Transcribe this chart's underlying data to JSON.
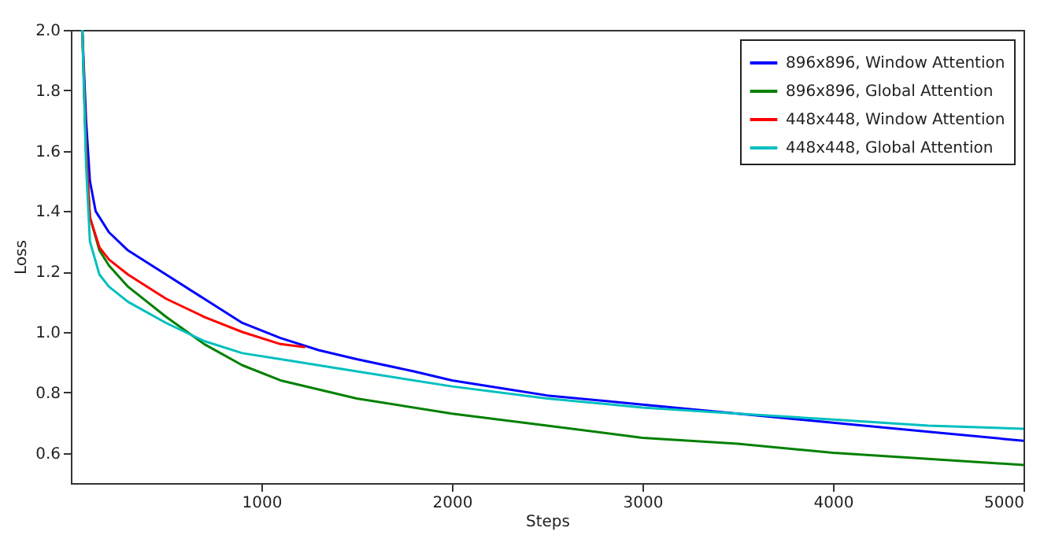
{
  "chart_data": {
    "type": "line",
    "xlabel": "Steps",
    "ylabel": "Loss",
    "xlim": [
      0,
      5000
    ],
    "xticks": [
      1000,
      2000,
      3000,
      4000,
      5000
    ],
    "ylim": [
      0.5,
      2.0
    ],
    "yticks": [
      0.6,
      0.8,
      {
        "value": 1,
        "label": "1.0"
      },
      1.2,
      1.4,
      1.6,
      1.8,
      {
        "value": 2,
        "label": "2.0"
      }
    ],
    "grid": false,
    "legend": "top right",
    "marker": "none",
    "line_style": "solid",
    "series": [
      {
        "name": "896x896, Window Attention",
        "color": "#0000ff",
        "x": [
          60,
          80,
          100,
          130,
          200,
          300,
          500,
          700,
          900,
          1100,
          1300,
          1500,
          1800,
          2000,
          2300,
          2500,
          3000,
          3500,
          4000,
          4500,
          5000
        ],
        "values": [
          2.0,
          1.7,
          1.5,
          1.4,
          1.33,
          1.27,
          1.19,
          1.11,
          1.03,
          0.98,
          0.94,
          0.91,
          0.87,
          0.84,
          0.81,
          0.79,
          0.76,
          0.73,
          0.7,
          0.67,
          0.64
        ]
      },
      {
        "name": "896x896, Global Attention",
        "color": "#008000",
        "x": [
          60,
          80,
          100,
          150,
          200,
          300,
          500,
          700,
          900,
          1100,
          1500,
          2000,
          2500,
          3000,
          3500,
          4000,
          4500,
          5000
        ],
        "values": [
          2.0,
          1.6,
          1.38,
          1.27,
          1.22,
          1.15,
          1.05,
          0.96,
          0.89,
          0.84,
          0.78,
          0.73,
          0.69,
          0.65,
          0.63,
          0.6,
          0.58,
          0.56
        ]
      },
      {
        "name": "448x448, Window Attention",
        "color": "#ff0000",
        "x": [
          60,
          80,
          100,
          150,
          200,
          300,
          500,
          700,
          900,
          1100,
          1230
        ],
        "values": [
          2.0,
          1.6,
          1.38,
          1.28,
          1.24,
          1.19,
          1.11,
          1.05,
          1.0,
          0.96,
          0.95
        ]
      },
      {
        "name": "448x448, Global Attention",
        "color": "#00bfbf",
        "x": [
          60,
          80,
          100,
          150,
          200,
          300,
          500,
          700,
          900,
          1100,
          1500,
          2000,
          2500,
          3000,
          3500,
          4000,
          4500,
          5000
        ],
        "values": [
          2.0,
          1.55,
          1.3,
          1.19,
          1.15,
          1.1,
          1.03,
          0.97,
          0.93,
          0.91,
          0.87,
          0.82,
          0.78,
          0.75,
          0.73,
          0.71,
          0.69,
          0.68
        ]
      }
    ]
  }
}
